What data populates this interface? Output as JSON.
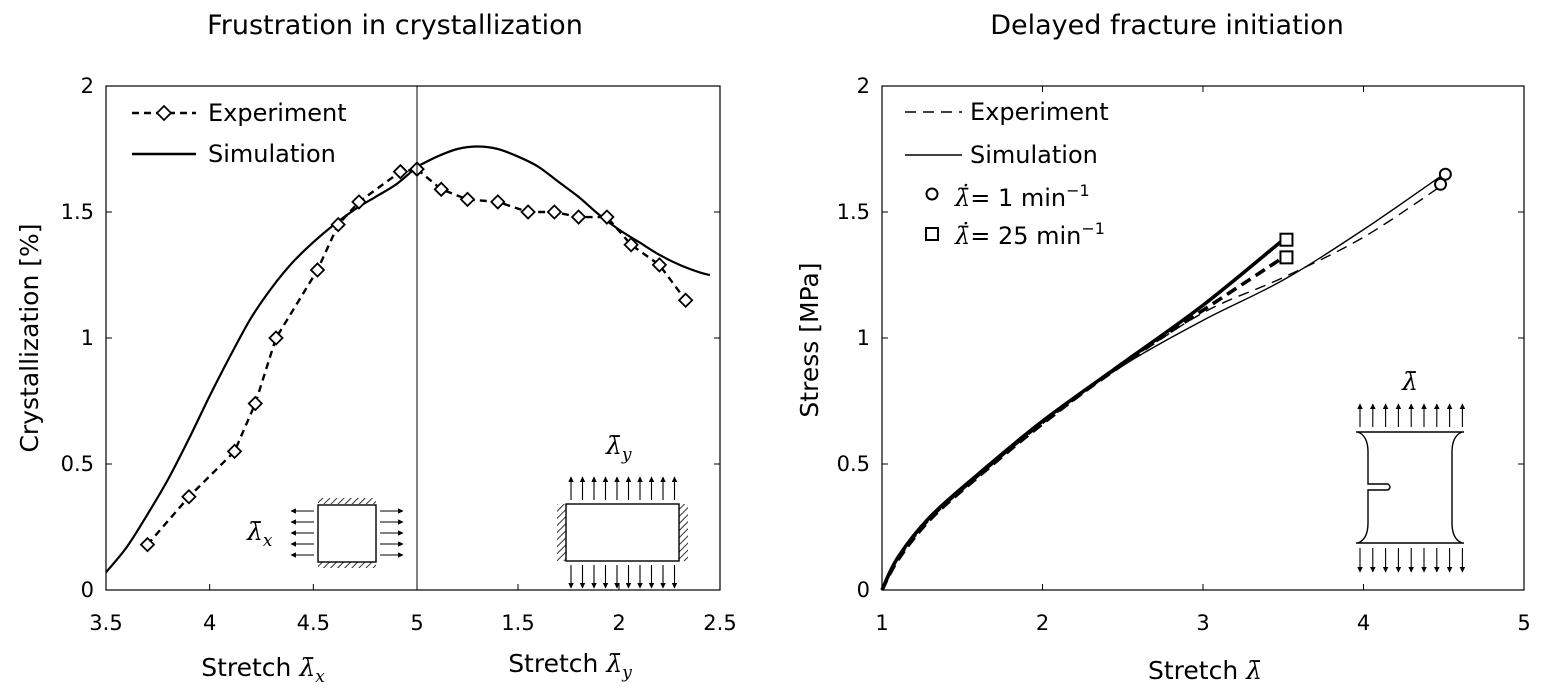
{
  "chart_data": [
    {
      "type": "line",
      "title": "Frustration in crystallization",
      "ylabel": "Crystallization [%]",
      "ylim": [
        0,
        2
      ],
      "yticks": [
        "0",
        "0.5",
        "1",
        "1.5",
        "2"
      ],
      "grid": false,
      "legend": "top-left",
      "left_panel": {
        "xlabel": "Stretch λ̄x",
        "xlabel_text": "Stretch",
        "xlabel_sym": "λ̄",
        "xlabel_sub": "x",
        "xlim": [
          3.5,
          5
        ],
        "xticks": [
          "3.5",
          "4",
          "4.5",
          "5"
        ],
        "inset_label": "λ̄x",
        "inset_sym": "λ̄",
        "inset_sub": "x"
      },
      "right_panel": {
        "xlabel": "Stretch λ̄y",
        "xlabel_text": "Stretch",
        "xlabel_sym": "λ̄",
        "xlabel_sub": "y",
        "xlim": [
          1,
          2.5
        ],
        "xticks": [
          "1.5",
          "2",
          "2.5"
        ],
        "inset_label": "λ̄y",
        "inset_sym": "λ̄",
        "inset_sub": "y"
      },
      "series": [
        {
          "name": "Experiment",
          "style": "dashed-diamond",
          "left": {
            "x": [
              3.7,
              3.9,
              4.12,
              4.22,
              4.32,
              4.52,
              4.62,
              4.72,
              4.92,
              5.0
            ],
            "y": [
              0.18,
              0.37,
              0.55,
              0.74,
              1.0,
              1.27,
              1.45,
              1.54,
              1.66,
              1.67
            ]
          },
          "right": {
            "x": [
              1.0,
              1.12,
              1.25,
              1.4,
              1.55,
              1.68,
              1.8,
              1.94,
              2.06,
              2.2,
              2.33
            ],
            "y": [
              1.67,
              1.59,
              1.55,
              1.54,
              1.5,
              1.5,
              1.48,
              1.48,
              1.37,
              1.29,
              1.15
            ]
          }
        },
        {
          "name": "Simulation",
          "style": "solid",
          "left": {
            "x": [
              3.5,
              3.6,
              3.7,
              3.8,
              3.9,
              4.0,
              4.1,
              4.2,
              4.3,
              4.4,
              4.5,
              4.6,
              4.7,
              4.8,
              4.9,
              5.0
            ],
            "y": [
              0.07,
              0.17,
              0.3,
              0.44,
              0.6,
              0.77,
              0.93,
              1.08,
              1.2,
              1.3,
              1.38,
              1.45,
              1.51,
              1.56,
              1.61,
              1.68
            ]
          },
          "right": {
            "x": [
              1.0,
              1.1,
              1.2,
              1.3,
              1.4,
              1.5,
              1.6,
              1.7,
              1.8,
              1.9,
              2.0,
              2.1,
              2.2,
              2.3,
              2.4,
              2.45
            ],
            "y": [
              1.68,
              1.72,
              1.75,
              1.76,
              1.75,
              1.72,
              1.68,
              1.62,
              1.56,
              1.49,
              1.43,
              1.38,
              1.33,
              1.29,
              1.26,
              1.25
            ]
          }
        }
      ]
    },
    {
      "type": "line",
      "title": "Delayed fracture initiation",
      "xlabel": "Stretch λ̄",
      "xlabel_text": "Stretch",
      "xlabel_sym": "λ̄",
      "ylabel": "Stress [MPa]",
      "xlim": [
        1,
        5
      ],
      "ylim": [
        0,
        2
      ],
      "xticks": [
        "1",
        "2",
        "3",
        "4",
        "5"
      ],
      "yticks": [
        "0",
        "0.5",
        "1",
        "1.5",
        "2"
      ],
      "grid": false,
      "legend": "top-left",
      "legend_labels": {
        "experiment": "Experiment",
        "simulation": "Simulation",
        "rate1": "λ̄̇ = 1 min⁻¹",
        "rate1_rhs": "= 1 min",
        "rate25": "λ̄̇ = 25 min⁻¹",
        "rate25_rhs": "= 25 min",
        "rate_sym": "λ̄̇",
        "rate_exp": "−1"
      },
      "inset_label": "λ̄",
      "series": [
        {
          "name": "Experiment",
          "rate": "λ̄̇ = 1 min⁻¹",
          "style": "thin-dashed",
          "x": [
            1.0,
            1.1,
            1.3,
            1.6,
            2.0,
            2.5,
            3.0,
            3.5,
            4.0,
            4.5
          ],
          "y": [
            0.0,
            0.12,
            0.28,
            0.45,
            0.66,
            0.89,
            1.1,
            1.24,
            1.4,
            1.61
          ]
        },
        {
          "name": "Simulation",
          "rate": "λ̄̇ = 1 min⁻¹",
          "style": "thin-solid",
          "x": [
            1.0,
            1.1,
            1.3,
            1.6,
            2.0,
            2.5,
            3.0,
            3.5,
            4.0,
            4.5
          ],
          "y": [
            0.0,
            0.13,
            0.29,
            0.46,
            0.67,
            0.89,
            1.07,
            1.23,
            1.43,
            1.65
          ]
        },
        {
          "name": "Experiment",
          "rate": "λ̄̇ = 25 min⁻¹",
          "style": "thick-dashed",
          "x": [
            1.0,
            1.1,
            1.3,
            1.6,
            2.0,
            2.5,
            3.0,
            3.5
          ],
          "y": [
            0.0,
            0.12,
            0.28,
            0.45,
            0.66,
            0.9,
            1.11,
            1.32
          ]
        },
        {
          "name": "Simulation",
          "rate": "λ̄̇ = 25 min⁻¹",
          "style": "thick-solid",
          "x": [
            1.0,
            1.1,
            1.3,
            1.6,
            2.0,
            2.5,
            3.0,
            3.5
          ],
          "y": [
            0.0,
            0.13,
            0.29,
            0.46,
            0.67,
            0.9,
            1.13,
            1.39
          ]
        }
      ],
      "failure_markers": [
        {
          "rate": "λ̄̇ = 1 min⁻¹",
          "marker": "circle",
          "x": 4.48,
          "y": 1.61
        },
        {
          "rate": "λ̄̇ = 1 min⁻¹",
          "marker": "circle",
          "x": 4.51,
          "y": 1.65
        },
        {
          "rate": "λ̄̇ = 25 min⁻¹",
          "marker": "square",
          "x": 3.52,
          "y": 1.39
        },
        {
          "rate": "λ̄̇ = 25 min⁻¹",
          "marker": "square",
          "x": 3.52,
          "y": 1.32
        }
      ]
    }
  ]
}
